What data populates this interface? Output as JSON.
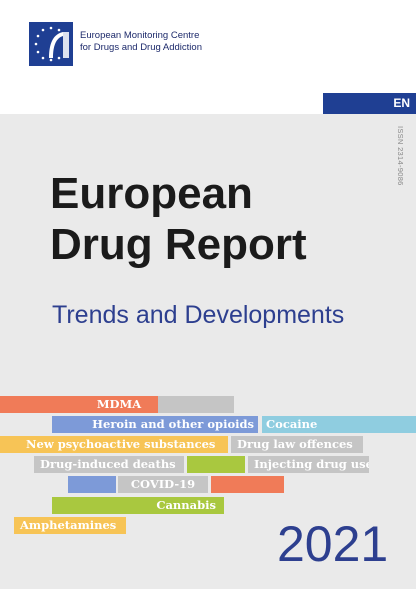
{
  "organisation": {
    "line1": "European Monitoring Centre",
    "line2": "for Drugs and Drug Addiction"
  },
  "language": "EN",
  "issn": "ISSN 2314-9086",
  "title": {
    "line1": "European",
    "line2": "Drug Report"
  },
  "subtitle": "Trends and Developments",
  "year": "2021",
  "colors": {
    "brand_blue": "#1f3f93",
    "title_text": "#1b1b1b",
    "subtitle_text": "#2d3f8f",
    "background": "#eaeaea",
    "bar_orange": "#f07b58",
    "bar_blue": "#7d9ad8",
    "bar_lightblue": "#8fcde0",
    "bar_yellow": "#f7c456",
    "bar_grey": "#c5c5c5",
    "bar_green": "#a9c83f"
  },
  "topics": {
    "mdma": "MDMA",
    "heroin": "Heroin and other opioids",
    "cocaine": "Cocaine",
    "nps": "New psychoactive substances",
    "drug_law": "Drug law offences",
    "deaths": "Drug-induced deaths",
    "injecting": "Injecting drug use",
    "covid": "COVID-19",
    "cannabis": "Cannabis",
    "amphetamines": "Amphetamines"
  }
}
